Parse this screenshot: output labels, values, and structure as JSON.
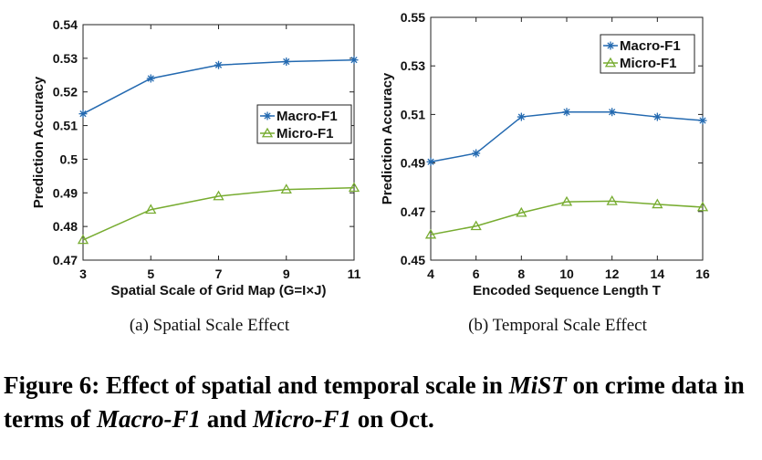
{
  "figure": {
    "caption_prefix": "Figure 6: Effect of spatial and temporal scale in",
    "caption_model": "MiST",
    "caption_mid": "on crime data in terms of",
    "caption_metric1": "Macro-F1",
    "caption_and": "and",
    "caption_metric2": "Micro-F1",
    "caption_suffix": "on Oct."
  },
  "colors": {
    "macro": "#2369b0",
    "micro": "#77ac30"
  },
  "chart_data": [
    {
      "type": "line",
      "subcaption": "(a)  Spatial Scale Effect",
      "xlabel": "Spatial Scale of Grid Map (G=I×J)",
      "ylabel": "Prediction Accuracy",
      "xlim": [
        3,
        11
      ],
      "ylim": [
        0.47,
        0.54
      ],
      "xticks": [
        3,
        5,
        7,
        9,
        11
      ],
      "yticks": [
        0.47,
        0.48,
        0.49,
        0.5,
        0.51,
        0.52,
        0.53,
        0.54
      ],
      "yticklabels": [
        "0.47",
        "0.48",
        "0.49",
        "0.5",
        "0.51",
        "0.52",
        "0.53",
        "0.54"
      ],
      "x": [
        3,
        5,
        7,
        9,
        11
      ],
      "legend_position": "right",
      "series": [
        {
          "name": "Macro-F1",
          "marker": "asterisk",
          "values": [
            0.5135,
            0.524,
            0.528,
            0.529,
            0.5295
          ]
        },
        {
          "name": "Micro-F1",
          "marker": "triangle",
          "values": [
            0.476,
            0.485,
            0.489,
            0.491,
            0.4915
          ]
        }
      ]
    },
    {
      "type": "line",
      "subcaption": "(b)  Temporal Scale Effect",
      "xlabel": "Encoded Sequence Length T",
      "ylabel": "Prediction Accuracy",
      "xlim": [
        4,
        16
      ],
      "ylim": [
        0.45,
        0.55
      ],
      "xticks": [
        4,
        6,
        8,
        10,
        12,
        14,
        16
      ],
      "yticks": [
        0.45,
        0.47,
        0.49,
        0.51,
        0.53,
        0.55
      ],
      "yticklabels": [
        "0.45",
        "0.47",
        "0.49",
        "0.51",
        "0.53",
        "0.55"
      ],
      "x": [
        4,
        6,
        8,
        10,
        12,
        14,
        16
      ],
      "legend_position": "top-right",
      "series": [
        {
          "name": "Macro-F1",
          "marker": "asterisk",
          "values": [
            0.4905,
            0.494,
            0.509,
            0.511,
            0.511,
            0.509,
            0.5075
          ]
        },
        {
          "name": "Micro-F1",
          "marker": "triangle",
          "values": [
            0.4605,
            0.464,
            0.4695,
            0.474,
            0.4743,
            0.473,
            0.4718
          ]
        }
      ]
    }
  ]
}
